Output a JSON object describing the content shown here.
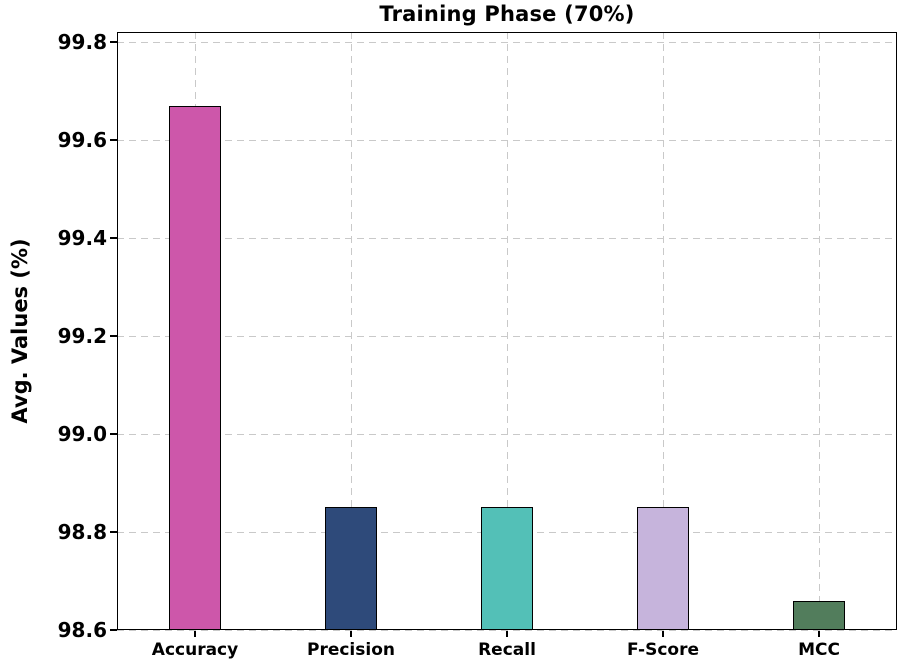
{
  "figure": {
    "background": "#ffffff",
    "text_color": "#000000"
  },
  "chart_data": {
    "type": "bar",
    "title": "Training Phase (70%)",
    "xlabel": "",
    "ylabel": "Avg. Values (%)",
    "categories": [
      "Accuracy",
      "Precision",
      "Recall",
      "F-Score",
      "MCC"
    ],
    "values": [
      99.67,
      98.85,
      98.85,
      98.85,
      98.66
    ],
    "bar_colors": [
      "#cd57aa",
      "#2e4a7a",
      "#53c0b7",
      "#c6b4dc",
      "#527d5c"
    ],
    "bar_edge_color": "#000000",
    "ylim": [
      98.6,
      99.82
    ],
    "yticks": [
      98.6,
      98.8,
      99.0,
      99.2,
      99.4,
      99.6,
      99.8
    ],
    "ytick_format_decimals": 1,
    "grid": {
      "show": true,
      "style": "dashed",
      "color": "#c9c9c9",
      "axis": "both"
    },
    "legend": "none"
  }
}
